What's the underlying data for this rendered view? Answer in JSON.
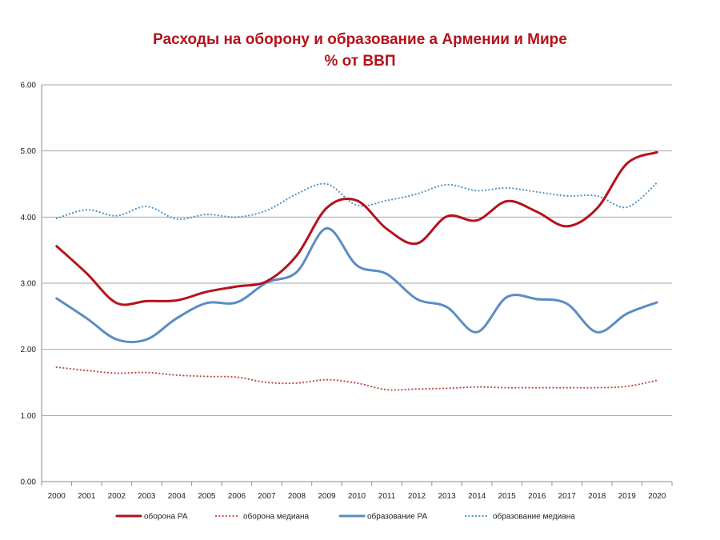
{
  "chart_data": {
    "type": "line",
    "title": "Расходы на оборону и образование а Армении и Мире",
    "subtitle": "% от ВВП",
    "xlabel": "",
    "ylabel": "",
    "x": [
      "2000",
      "2001",
      "2002",
      "2003",
      "2004",
      "2005",
      "2006",
      "2007",
      "2008",
      "2009",
      "2010",
      "2011",
      "2012",
      "2013",
      "2014",
      "2015",
      "2016",
      "2017",
      "2018",
      "2019",
      "2020"
    ],
    "ylim": [
      0,
      6
    ],
    "yticks": [
      "0.00",
      "1.00",
      "2.00",
      "3.00",
      "4.00",
      "5.00",
      "6.00"
    ],
    "grid": true,
    "legend_position": "bottom",
    "series": [
      {
        "name": "оборона РА",
        "color": "#b5121b",
        "style": "solid",
        "values": [
          3.56,
          3.15,
          2.7,
          2.73,
          2.74,
          2.87,
          2.95,
          3.03,
          3.42,
          4.14,
          4.25,
          3.82,
          3.6,
          4.01,
          3.95,
          4.24,
          4.08,
          3.86,
          4.13,
          4.81,
          4.98
        ]
      },
      {
        "name": "оборона медиана",
        "color": "#c0504d",
        "style": "dotted",
        "values": [
          1.73,
          1.68,
          1.64,
          1.65,
          1.61,
          1.59,
          1.58,
          1.5,
          1.49,
          1.54,
          1.49,
          1.39,
          1.4,
          1.41,
          1.43,
          1.42,
          1.42,
          1.42,
          1.42,
          1.44,
          1.53
        ]
      },
      {
        "name": "образование РА",
        "color": "#5b8cc4",
        "style": "solid",
        "values": [
          2.77,
          2.47,
          2.15,
          2.15,
          2.47,
          2.7,
          2.71,
          3.01,
          3.17,
          3.83,
          3.27,
          3.14,
          2.76,
          2.64,
          2.26,
          2.79,
          2.76,
          2.69,
          2.26,
          2.54,
          2.71
        ]
      },
      {
        "name": "образование медиана",
        "color": "#4f97c9",
        "style": "dotted",
        "values": [
          3.98,
          4.11,
          4.02,
          4.16,
          3.97,
          4.04,
          4.0,
          4.1,
          4.35,
          4.5,
          4.18,
          4.25,
          4.35,
          4.49,
          4.4,
          4.44,
          4.38,
          4.32,
          4.32,
          4.15,
          4.52
        ]
      }
    ]
  }
}
